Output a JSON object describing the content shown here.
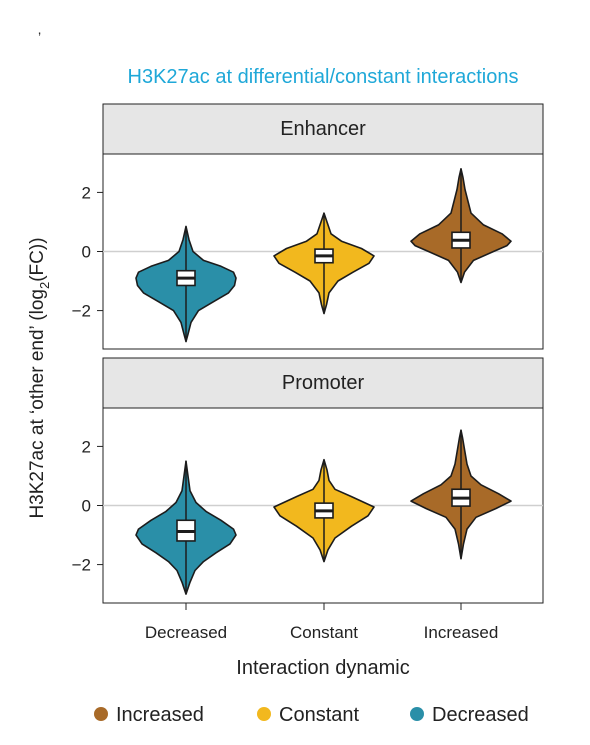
{
  "chart_data": {
    "type": "violin",
    "title": "H3K27ac at differential/constant interactions",
    "ylabel_prefix": "H3K27ac at ‘other end’ (log",
    "ylabel_sub": "2",
    "ylabel_suffix": "(FC))",
    "xlabel": "Interaction dynamic",
    "categories": [
      "Decreased",
      "Constant",
      "Increased"
    ],
    "ylim": [
      -3.3,
      3.3
    ],
    "yticks": [
      2,
      0,
      -2
    ],
    "ytick_labels": [
      "2",
      "0",
      "−2"
    ],
    "colors": {
      "Decreased": "#2a8fa8",
      "Constant": "#f2b81e",
      "Increased": "#a86a28"
    },
    "panels": [
      {
        "label": "Enhancer",
        "violins": [
          {
            "category": "Decreased",
            "min": -3.05,
            "max": 0.85,
            "q1": -1.15,
            "median": -0.9,
            "q3": -0.65,
            "profile": [
              [
                -3.05,
                0.0
              ],
              [
                -2.8,
                0.04
              ],
              [
                -2.4,
                0.1
              ],
              [
                -2.0,
                0.25
              ],
              [
                -1.7,
                0.55
              ],
              [
                -1.4,
                0.85
              ],
              [
                -1.15,
                0.97
              ],
              [
                -0.9,
                1.0
              ],
              [
                -0.7,
                0.95
              ],
              [
                -0.5,
                0.7
              ],
              [
                -0.3,
                0.35
              ],
              [
                0.0,
                0.14
              ],
              [
                0.4,
                0.06
              ],
              [
                0.85,
                0.0
              ]
            ]
          },
          {
            "category": "Constant",
            "min": -2.1,
            "max": 1.3,
            "q1": -0.38,
            "median": -0.15,
            "q3": 0.08,
            "profile": [
              [
                -2.1,
                0.0
              ],
              [
                -1.8,
                0.05
              ],
              [
                -1.4,
                0.1
              ],
              [
                -1.0,
                0.28
              ],
              [
                -0.7,
                0.58
              ],
              [
                -0.4,
                0.9
              ],
              [
                -0.15,
                1.0
              ],
              [
                0.1,
                0.75
              ],
              [
                0.35,
                0.35
              ],
              [
                0.6,
                0.14
              ],
              [
                1.0,
                0.06
              ],
              [
                1.3,
                0.0
              ]
            ]
          },
          {
            "category": "Increased",
            "min": -1.05,
            "max": 2.8,
            "q1": 0.12,
            "median": 0.38,
            "q3": 0.65,
            "profile": [
              [
                -1.05,
                0.0
              ],
              [
                -0.7,
                0.07
              ],
              [
                -0.3,
                0.25
              ],
              [
                0.0,
                0.65
              ],
              [
                0.2,
                0.92
              ],
              [
                0.35,
                1.0
              ],
              [
                0.6,
                0.82
              ],
              [
                0.9,
                0.45
              ],
              [
                1.3,
                0.2
              ],
              [
                1.7,
                0.14
              ],
              [
                2.1,
                0.08
              ],
              [
                2.5,
                0.04
              ],
              [
                2.8,
                0.0
              ]
            ]
          }
        ]
      },
      {
        "label": "Promoter",
        "violins": [
          {
            "category": "Decreased",
            "min": -3.0,
            "max": 1.5,
            "q1": -1.2,
            "median": -0.88,
            "q3": -0.5,
            "profile": [
              [
                -3.0,
                0.0
              ],
              [
                -2.6,
                0.08
              ],
              [
                -2.2,
                0.18
              ],
              [
                -1.9,
                0.35
              ],
              [
                -1.6,
                0.6
              ],
              [
                -1.3,
                0.88
              ],
              [
                -1.0,
                1.0
              ],
              [
                -0.8,
                0.95
              ],
              [
                -0.5,
                0.7
              ],
              [
                -0.2,
                0.4
              ],
              [
                0.1,
                0.2
              ],
              [
                0.5,
                0.08
              ],
              [
                1.0,
                0.04
              ],
              [
                1.5,
                0.0
              ]
            ]
          },
          {
            "category": "Constant",
            "min": -1.9,
            "max": 1.55,
            "q1": -0.42,
            "median": -0.18,
            "q3": 0.08,
            "profile": [
              [
                -1.9,
                0.0
              ],
              [
                -1.5,
                0.08
              ],
              [
                -1.1,
                0.22
              ],
              [
                -0.7,
                0.55
              ],
              [
                -0.35,
                0.88
              ],
              [
                -0.05,
                1.0
              ],
              [
                0.3,
                0.55
              ],
              [
                0.55,
                0.22
              ],
              [
                0.85,
                0.1
              ],
              [
                1.2,
                0.06
              ],
              [
                1.55,
                0.0
              ]
            ]
          },
          {
            "category": "Increased",
            "min": -1.8,
            "max": 2.55,
            "q1": -0.02,
            "median": 0.25,
            "q3": 0.55,
            "profile": [
              [
                -1.8,
                0.0
              ],
              [
                -1.3,
                0.05
              ],
              [
                -0.8,
                0.12
              ],
              [
                -0.4,
                0.3
              ],
              [
                -0.1,
                0.7
              ],
              [
                0.15,
                1.0
              ],
              [
                0.4,
                0.75
              ],
              [
                0.7,
                0.4
              ],
              [
                1.0,
                0.2
              ],
              [
                1.4,
                0.12
              ],
              [
                1.9,
                0.07
              ],
              [
                2.3,
                0.03
              ],
              [
                2.55,
                0.0
              ]
            ]
          }
        ]
      }
    ],
    "legend": [
      {
        "label": "Increased",
        "color": "#a86a28"
      },
      {
        "label": "Constant",
        "color": "#f2b81e"
      },
      {
        "label": "Decreased",
        "color": "#2a8fa8"
      }
    ],
    "legend_position": "bottom",
    "grid": "zero-line only"
  },
  "stray_mark": "’"
}
